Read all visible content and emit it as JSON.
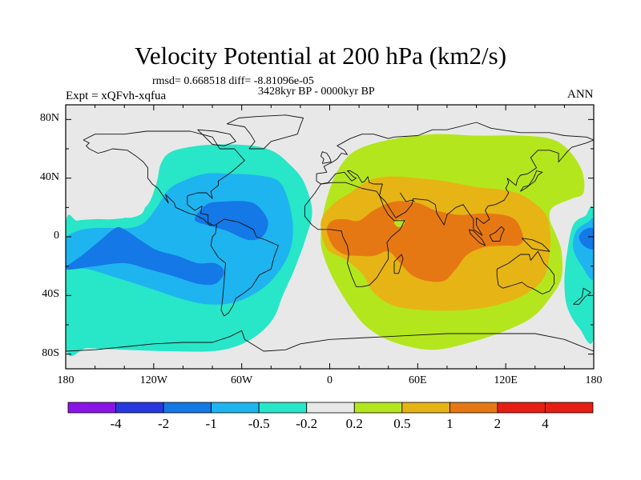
{
  "title": "Velocity Potential at 200 hPa (km2/s)",
  "stats_text": "rmsd= 0.668518 diff= -8.81096e-05",
  "period_text": "3428kyr BP - 0000kyr BP",
  "experiment_text": "Expt = xQFvh-xqfua",
  "season_text": "ANN",
  "chart_data": {
    "type": "filled_contour_map",
    "variable": "Velocity Potential at 200 hPa",
    "units": "km2/s",
    "projection": "cylindrical equidistant",
    "lon_range": [
      -180,
      180
    ],
    "lat_range": [
      -90,
      90
    ],
    "x_tick_labels": [
      "180",
      "120W",
      "60W",
      "0",
      "60E",
      "120E",
      "180"
    ],
    "x_tick_lons": [
      -180,
      -120,
      -60,
      0,
      60,
      120,
      180
    ],
    "y_tick_labels": [
      "80N",
      "40N",
      "0",
      "40S",
      "80S"
    ],
    "y_tick_lats": [
      80,
      40,
      0,
      -40,
      -80
    ],
    "contour_levels": [
      -4,
      -2,
      -1,
      -0.5,
      -0.2,
      0.2,
      0.5,
      1,
      2,
      4
    ],
    "colorbar_labels": [
      "-4",
      "-2",
      "-1",
      "-0.5",
      "-0.2",
      "0.2",
      "0.5",
      "1",
      "2",
      "4"
    ],
    "colorbar_colors": [
      "#8a14e6",
      "#2838e0",
      "#1478e6",
      "#1eb4f0",
      "#28e6c8",
      "#e8e8e8",
      "#b4e61e",
      "#e6b414",
      "#e67814",
      "#e61e14"
    ],
    "fields": [
      {
        "name": "western-hemisphere-negative",
        "level": "-0.5 to -0.2",
        "color": "#28e6c8",
        "polygon": [
          [
            -180,
            8
          ],
          [
            -172,
            11
          ],
          [
            -160,
            12
          ],
          [
            -148,
            12
          ],
          [
            -136,
            14
          ],
          [
            -124,
            22
          ],
          [
            -118,
            37
          ],
          [
            -115,
            50
          ],
          [
            -108,
            58
          ],
          [
            -90,
            62
          ],
          [
            -72,
            63
          ],
          [
            -52,
            62
          ],
          [
            -38,
            58
          ],
          [
            -28,
            50
          ],
          [
            -18,
            38
          ],
          [
            -12,
            18
          ],
          [
            -16,
            0
          ],
          [
            -24,
            -22
          ],
          [
            -32,
            -40
          ],
          [
            -38,
            -55
          ],
          [
            -48,
            -66
          ],
          [
            -62,
            -74
          ],
          [
            -80,
            -78
          ],
          [
            -110,
            -78
          ],
          [
            -140,
            -77
          ],
          [
            -165,
            -76
          ],
          [
            -180,
            -75
          ]
        ]
      },
      {
        "name": "western-hemisphere-negative",
        "level": "-1 to -0.5",
        "color": "#1eb4f0",
        "polygon": [
          [
            -180,
            -2
          ],
          [
            -172,
            4
          ],
          [
            -160,
            6
          ],
          [
            -148,
            6
          ],
          [
            -136,
            6
          ],
          [
            -126,
            10
          ],
          [
            -118,
            20
          ],
          [
            -110,
            32
          ],
          [
            -100,
            38
          ],
          [
            -85,
            43
          ],
          [
            -68,
            43
          ],
          [
            -50,
            42
          ],
          [
            -35,
            38
          ],
          [
            -28,
            24
          ],
          [
            -25,
            5
          ],
          [
            -28,
            -12
          ],
          [
            -38,
            -28
          ],
          [
            -50,
            -38
          ],
          [
            -66,
            -45
          ],
          [
            -84,
            -46
          ],
          [
            -102,
            -42
          ],
          [
            -120,
            -36
          ],
          [
            -145,
            -28
          ],
          [
            -165,
            -22
          ],
          [
            -180,
            -20
          ]
        ]
      },
      {
        "name": "western-hemisphere-negative",
        "level": "-2 to -1",
        "color": "#1478e6",
        "polygon": [
          [
            -180,
            -22
          ],
          [
            -168,
            -12
          ],
          [
            -156,
            -2
          ],
          [
            -146,
            6
          ],
          [
            -140,
            5
          ],
          [
            -128,
            -3
          ],
          [
            -118,
            -9
          ],
          [
            -104,
            -13
          ],
          [
            -90,
            -18
          ],
          [
            -78,
            -18
          ],
          [
            -72,
            -24
          ],
          [
            -78,
            -32
          ],
          [
            -90,
            -32
          ],
          [
            -106,
            -27
          ],
          [
            -124,
            -22
          ],
          [
            -140,
            -18
          ],
          [
            -160,
            -20
          ]
        ]
      },
      {
        "name": "western-hemisphere-negative",
        "level": "-2 to -1",
        "color": "#1478e6",
        "polygon": [
          [
            -92,
            12
          ],
          [
            -84,
            22
          ],
          [
            -72,
            24
          ],
          [
            -56,
            24
          ],
          [
            -48,
            20
          ],
          [
            -42,
            10
          ],
          [
            -46,
            0
          ],
          [
            -56,
            -2
          ],
          [
            -70,
            4
          ],
          [
            -84,
            8
          ]
        ]
      },
      {
        "name": "western-hemisphere-hole",
        "level": "-0.2 to 0.2",
        "color": "#e8e8e8",
        "polygon": [
          [
            -144,
            18
          ],
          [
            -140,
            25
          ],
          [
            -132,
            27
          ],
          [
            -126,
            23
          ],
          [
            -128,
            16
          ],
          [
            -136,
            13
          ],
          [
            -142,
            14
          ]
        ]
      },
      {
        "name": "eastern-hemisphere-positive",
        "level": "0.2 to 0.5",
        "color": "#b4e61e",
        "polygon": [
          [
            -6,
            2
          ],
          [
            -4,
            18
          ],
          [
            2,
            38
          ],
          [
            10,
            52
          ],
          [
            20,
            60
          ],
          [
            40,
            66
          ],
          [
            70,
            70
          ],
          [
            100,
            69
          ],
          [
            130,
            69
          ],
          [
            150,
            67
          ],
          [
            162,
            60
          ],
          [
            172,
            45
          ],
          [
            173,
            30
          ],
          [
            165,
            26
          ],
          [
            152,
            20
          ],
          [
            150,
            12
          ],
          [
            154,
            2
          ],
          [
            158,
            -10
          ],
          [
            158,
            -28
          ],
          [
            150,
            -42
          ],
          [
            138,
            -55
          ],
          [
            120,
            -64
          ],
          [
            96,
            -72
          ],
          [
            70,
            -77
          ],
          [
            44,
            -72
          ],
          [
            26,
            -62
          ],
          [
            14,
            -48
          ],
          [
            2,
            -28
          ],
          [
            -5,
            -10
          ]
        ]
      },
      {
        "name": "eastern-hemisphere-positive",
        "level": "0.5 to 1",
        "color": "#e6b414",
        "polygon": [
          [
            -6,
            10
          ],
          [
            2,
            22
          ],
          [
            14,
            30
          ],
          [
            26,
            38
          ],
          [
            40,
            41
          ],
          [
            60,
            40
          ],
          [
            78,
            38
          ],
          [
            100,
            34
          ],
          [
            118,
            32
          ],
          [
            132,
            28
          ],
          [
            146,
            17
          ],
          [
            150,
            5
          ],
          [
            150,
            -10
          ],
          [
            146,
            -28
          ],
          [
            132,
            -40
          ],
          [
            112,
            -47
          ],
          [
            90,
            -50
          ],
          [
            66,
            -50
          ],
          [
            44,
            -47
          ],
          [
            30,
            -38
          ],
          [
            22,
            -25
          ],
          [
            10,
            -15
          ],
          [
            -2,
            -8
          ]
        ]
      },
      {
        "name": "eastern-hemisphere-positive",
        "level": "1 to 2",
        "color": "#e67814",
        "polygon": [
          [
            -2,
            5
          ],
          [
            2,
            11
          ],
          [
            10,
            12
          ],
          [
            20,
            11
          ],
          [
            30,
            18
          ],
          [
            44,
            24
          ],
          [
            60,
            23
          ],
          [
            72,
            18
          ],
          [
            88,
            15
          ],
          [
            104,
            16
          ],
          [
            118,
            15
          ],
          [
            126,
            12
          ],
          [
            130,
            6
          ],
          [
            132,
            -2
          ],
          [
            128,
            -6
          ],
          [
            120,
            -6
          ],
          [
            106,
            -7
          ],
          [
            94,
            -12
          ],
          [
            86,
            -22
          ],
          [
            78,
            -30
          ],
          [
            66,
            -30
          ],
          [
            56,
            -26
          ],
          [
            48,
            -18
          ],
          [
            40,
            -10
          ],
          [
            30,
            -13
          ],
          [
            20,
            -13
          ],
          [
            10,
            -12
          ],
          [
            2,
            -6
          ]
        ]
      },
      {
        "name": "eastern-hemisphere-small-patch",
        "level": "0.2 to 0.5",
        "color": "#b4e61e",
        "polygon": [
          [
            44,
            10
          ],
          [
            48,
            12
          ],
          [
            51,
            10
          ],
          [
            49,
            7
          ],
          [
            46,
            7
          ]
        ]
      },
      {
        "name": "dateline-negative",
        "level": "-0.5 to -0.2",
        "color": "#28e6c8",
        "polygon": [
          [
            180,
            -68
          ],
          [
            170,
            -62
          ],
          [
            162,
            -48
          ],
          [
            160,
            -30
          ],
          [
            162,
            -10
          ],
          [
            166,
            8
          ],
          [
            174,
            14
          ],
          [
            180,
            15
          ]
        ]
      },
      {
        "name": "dateline-negative",
        "level": "-1 to -0.5",
        "color": "#1eb4f0",
        "polygon": [
          [
            180,
            -28
          ],
          [
            172,
            -20
          ],
          [
            166,
            -8
          ],
          [
            168,
            4
          ],
          [
            176,
            10
          ],
          [
            180,
            10
          ]
        ]
      },
      {
        "name": "dateline-negative",
        "level": "-2 to -1",
        "color": "#1478e6",
        "polygon": [
          [
            180,
            -8
          ],
          [
            173,
            -6
          ],
          [
            170,
            0
          ],
          [
            174,
            5
          ],
          [
            180,
            5
          ]
        ]
      }
    ]
  }
}
